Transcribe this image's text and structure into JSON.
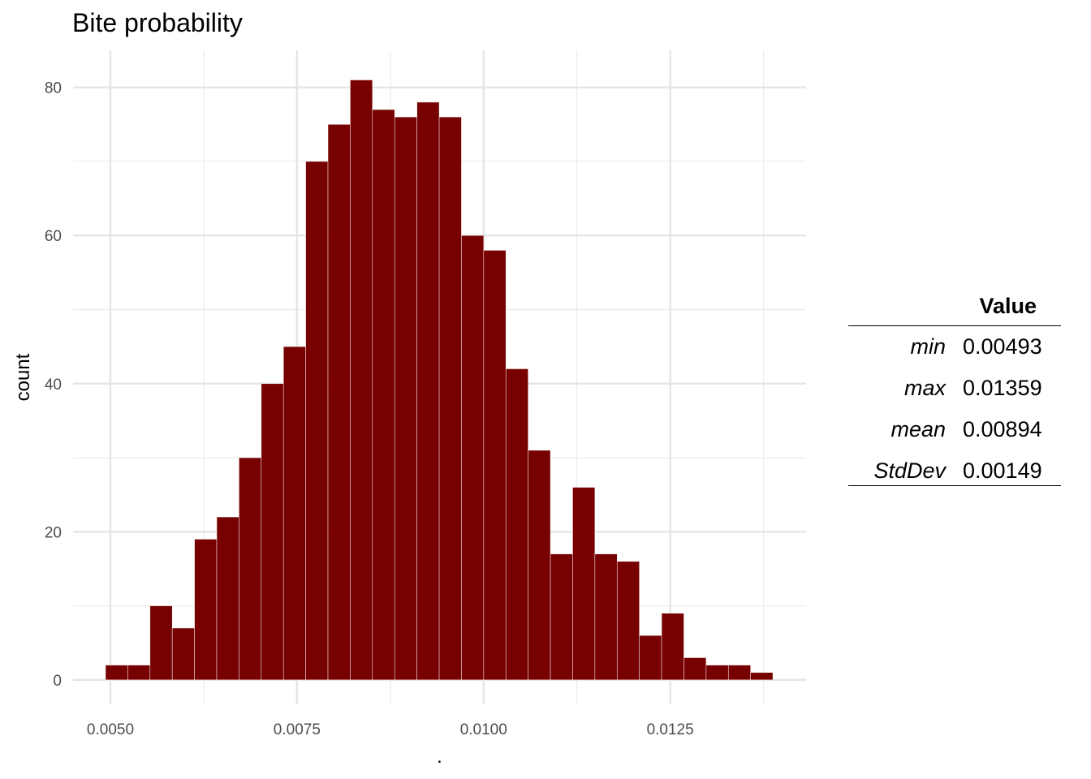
{
  "chart_data": {
    "type": "bar",
    "title": "Bite probability",
    "xlabel": ".",
    "ylabel": "count",
    "bin_start": 0.004935,
    "bin_width": 0.000298,
    "values": [
      2,
      2,
      10,
      7,
      19,
      22,
      30,
      40,
      45,
      70,
      75,
      81,
      77,
      76,
      78,
      76,
      60,
      58,
      42,
      31,
      17,
      26,
      17,
      16,
      6,
      9,
      3,
      2,
      2,
      1
    ],
    "xlim": [
      0.0045,
      0.01432
    ],
    "ylim": [
      -3.3,
      85
    ],
    "xticks": [
      0.005,
      0.0075,
      0.01,
      0.0125
    ],
    "xtick_labels": [
      "0.0050",
      "0.0075",
      "0.0100",
      "0.0125"
    ],
    "yticks": [
      0,
      20,
      40,
      60,
      80
    ],
    "ytick_labels": [
      "0",
      "20",
      "40",
      "60",
      "80"
    ],
    "grid": true,
    "bar_color": "#770000"
  },
  "table": {
    "header": "Value",
    "rows": [
      {
        "key": "min",
        "value": "0.00493"
      },
      {
        "key": "max",
        "value": "0.01359"
      },
      {
        "key": "mean",
        "value": "0.00894"
      },
      {
        "key": "StdDev",
        "value": "0.00149"
      }
    ]
  }
}
